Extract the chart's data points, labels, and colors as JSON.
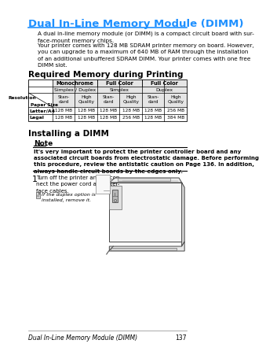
{
  "title": "Dual In-Line Memory Module (DIMM)",
  "title_color": "#1E90FF",
  "body_text1": "A dual in-line memory module (or DIMM) is a compact circuit board with sur-\nface-mount memory chips.",
  "body_text2": "Your printer comes with 128 MB SDRAM printer memory on board. However,\nyou can upgrade to a maximum of 640 MB of RAM through the installation\nof an additional unbuffered SDRAM DIMM. Your printer comes with one free\nDIMM slot.",
  "section1": "Required Memory during Printing",
  "section2": "Installing a DIMM",
  "table_header1": "Monochrome",
  "table_header2": "Full Color",
  "table_header3": "Full Color",
  "table_sub1": "Simplex / Duplex",
  "table_sub2": "Simplex",
  "table_sub3": "Duplex",
  "table_col_labels": [
    "Stan-\ndard",
    "High\nQuality",
    "Stan-\ndard",
    "High\nQuality",
    "Stan-\ndard",
    "High\nQuality"
  ],
  "table_row_label1": "Resolution",
  "table_row_label2": "Paper Size",
  "table_row1_label": "Letter/A4",
  "table_row2_label": "Legal",
  "table_row1": [
    "128 MB",
    "128 MB",
    "128 MB",
    "128 MB",
    "128 MB",
    "256 MB"
  ],
  "table_row2": [
    "128 MB",
    "128 MB",
    "128 MB",
    "256 MB",
    "128 MB",
    "384 MB"
  ],
  "note_title": "Note",
  "note_text": "It's very important to protect the printer controller board and any\nassociated circuit boards from electrostatic damage. Before performing\nthis procedure, review the antistatic caution on Page 136. In addition,\nalways handle circuit boards by the edges only.",
  "step1_num": "1",
  "step1_text": "Turn off the printer and discon-\nnect the power cord and inter-\nface cables.",
  "step1_note": "If the duplex option is\ninstalled, remove it.",
  "footer_text": "Dual In-Line Memory Module (DIMM)",
  "footer_page": "137",
  "bg_color": "#FFFFFF",
  "text_color": "#000000",
  "table_border_color": "#000000",
  "note_bg": "#EEEEEE"
}
